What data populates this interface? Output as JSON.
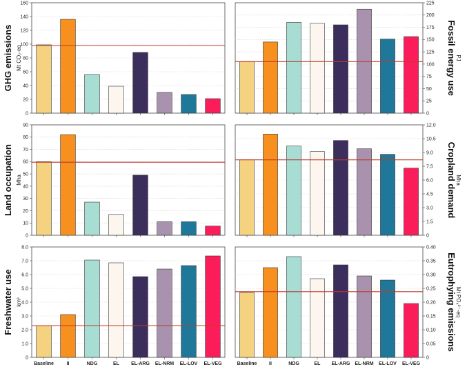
{
  "chart_data": [
    {
      "type": "bar",
      "title": "GHG emissions",
      "ylabel": "Mt CO₂-eq",
      "categories": [
        "Baseline",
        "II",
        "NDG",
        "EL",
        "EL-ARG",
        "EL-NRM",
        "EL-LOV",
        "EL-VEG"
      ],
      "values": [
        99,
        136,
        56,
        39,
        88,
        30,
        27,
        21
      ],
      "reference_value": 98,
      "ylim": [
        0,
        160
      ],
      "yticks": [
        "0",
        "20",
        "40",
        "60",
        "80",
        "100",
        "120",
        "140",
        "160"
      ],
      "axis_side": "left",
      "show_category_labels": false
    },
    {
      "type": "bar",
      "title": "Fossil energy use",
      "ylabel": "PJ",
      "categories": [
        "Baseline",
        "II",
        "NDG",
        "EL",
        "EL-ARG",
        "EL-NRM",
        "EL-LOV",
        "EL-VEG"
      ],
      "values": [
        105,
        145,
        185,
        183,
        180,
        212,
        151,
        156
      ],
      "reference_value": 105,
      "ylim": [
        0,
        225
      ],
      "yticks": [
        "0",
        "25",
        "50",
        "75",
        "100",
        "125",
        "150",
        "175",
        "200",
        "225"
      ],
      "axis_side": "right",
      "show_category_labels": false
    },
    {
      "type": "bar",
      "title": "Land occupation",
      "ylabel": "Mha",
      "categories": [
        "Baseline",
        "II",
        "NDG",
        "EL",
        "EL-ARG",
        "EL-NRM",
        "EL-LOV",
        "EL-VEG"
      ],
      "values": [
        60,
        82,
        27,
        17,
        49,
        11,
        11,
        7.5
      ],
      "reference_value": 59.5,
      "ylim": [
        0,
        90
      ],
      "yticks": [
        "0",
        "10",
        "20",
        "30",
        "40",
        "50",
        "60",
        "70",
        "80",
        "90"
      ],
      "axis_side": "left",
      "show_category_labels": false
    },
    {
      "type": "bar",
      "title": "Cropland demand",
      "ylabel": "Mha",
      "categories": [
        "Baseline",
        "II",
        "NDG",
        "EL",
        "EL-ARG",
        "EL-NRM",
        "EL-LOV",
        "EL-VEG"
      ],
      "values": [
        8.2,
        11.0,
        9.7,
        9.1,
        10.3,
        9.4,
        8.8,
        7.3
      ],
      "reference_value": 8.2,
      "ylim": [
        0,
        12
      ],
      "yticks": [
        "0",
        "1.5",
        "3.0",
        "4.5",
        "6.0",
        "7.5",
        "9.0",
        "10.5",
        "12.0"
      ],
      "axis_side": "right",
      "show_category_labels": false
    },
    {
      "type": "bar",
      "title": "Freshwater use",
      "ylabel": "km³",
      "categories": [
        "Baseline",
        "II",
        "NDG",
        "EL",
        "EL-ARG",
        "EL-NRM",
        "EL-LOV",
        "EL-VEG"
      ],
      "values": [
        2.3,
        3.1,
        7.05,
        6.85,
        5.85,
        6.4,
        6.65,
        7.35
      ],
      "reference_value": 2.3,
      "ylim": [
        0,
        8
      ],
      "yticks": [
        "0",
        "1.0",
        "2.0",
        "3.0",
        "4.0",
        "5.0",
        "6.0",
        "7.0",
        "8.0"
      ],
      "axis_side": "left",
      "show_category_labels": true
    },
    {
      "type": "bar",
      "title": "Eutrophying emissions",
      "ylabel": "Mt PO₄³⁻-eq",
      "categories": [
        "Baseline",
        "II",
        "NDG",
        "EL",
        "EL-ARG",
        "EL-NRM",
        "EL-LOV",
        "EL-VEG"
      ],
      "values": [
        0.235,
        0.325,
        0.365,
        0.285,
        0.335,
        0.295,
        0.28,
        0.195
      ],
      "reference_value": 0.238,
      "ylim": [
        0,
        0.4
      ],
      "yticks": [
        "0",
        "0.05",
        "0.10",
        "0.15",
        "0.20",
        "0.25",
        "0.30",
        "0.35",
        "0.40"
      ],
      "axis_side": "right",
      "show_category_labels": true
    }
  ],
  "colors": {
    "bars": [
      "#f5d27f",
      "#f7901e",
      "#a8ddd4",
      "#fdf6ef",
      "#3b2d5c",
      "#a892ad",
      "#1f7899",
      "#fb1d59"
    ],
    "reference_line": "#c0392b",
    "grid": "#cfcfcf",
    "frame": "#444444",
    "bar_stroke": "#333333"
  }
}
